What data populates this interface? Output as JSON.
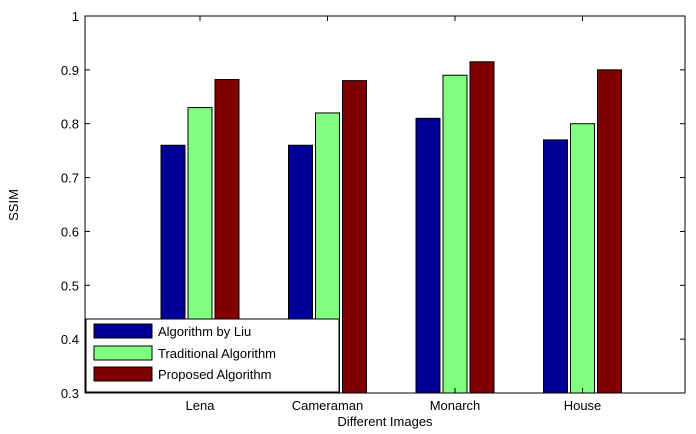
{
  "chart_data": {
    "type": "bar",
    "xlabel": "Different Images",
    "ylabel": "SSIM",
    "ylim": [
      0.3,
      1
    ],
    "yticks": [
      "0.3",
      "0.4",
      "0.5",
      "0.6",
      "0.7",
      "0.8",
      "0.9",
      "1"
    ],
    "categories": [
      "Lena",
      "Cameraman",
      "Monarch",
      "House"
    ],
    "series": [
      {
        "name": "Algorithm by Liu",
        "color": "#000099",
        "values": [
          0.76,
          0.76,
          0.81,
          0.77
        ]
      },
      {
        "name": "Traditional Algorithm",
        "color": "#80ff80",
        "values": [
          0.83,
          0.82,
          0.89,
          0.8
        ]
      },
      {
        "name": "Proposed Algorithm",
        "color": "#800000",
        "values": [
          0.882,
          0.88,
          0.915,
          0.9
        ]
      }
    ],
    "legend_position": "bottom-left",
    "grid": false
  }
}
